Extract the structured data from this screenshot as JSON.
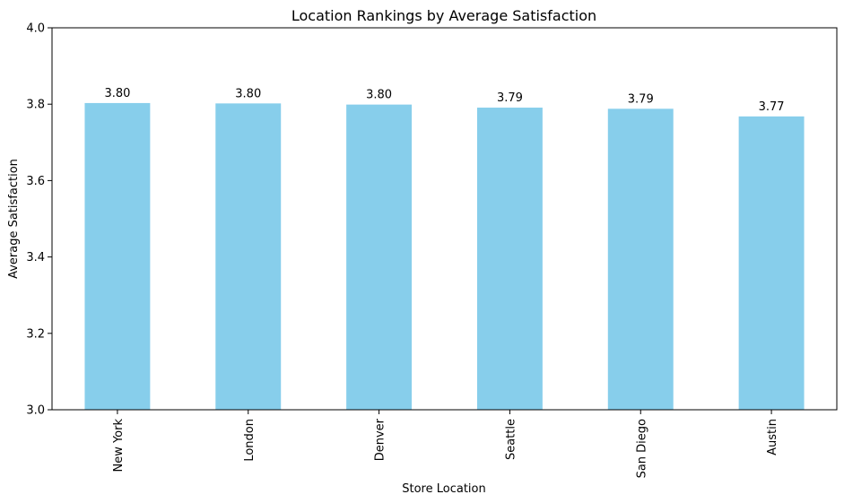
{
  "chart_data": {
    "type": "bar",
    "title": "Location Rankings by Average Satisfaction",
    "xlabel": "Store Location",
    "ylabel": "Average Satisfaction",
    "categories": [
      "New York",
      "London",
      "Denver",
      "Seattle",
      "San Diego",
      "Austin"
    ],
    "values": [
      3.803,
      3.802,
      3.799,
      3.791,
      3.788,
      3.768
    ],
    "value_labels": [
      "3.80",
      "3.80",
      "3.80",
      "3.79",
      "3.79",
      "3.77"
    ],
    "ylim": [
      3.0,
      4.0
    ],
    "yticks": [
      "3.0",
      "3.2",
      "3.4",
      "3.6",
      "3.8",
      "4.0"
    ],
    "bar_color": "#87CEEB",
    "grid": false,
    "legend": "none"
  }
}
